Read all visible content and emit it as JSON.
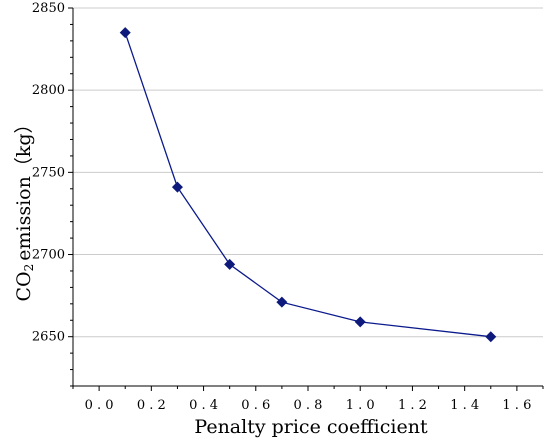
{
  "chart_data": {
    "type": "line",
    "title": "",
    "xlabel": "Penalty price coefficient",
    "ylabel": "emission（kg）",
    "ylabel_prefix": "CO",
    "ylabel_subscript": "2",
    "x": [
      0.1,
      0.3,
      0.5,
      0.7,
      1.0,
      1.5
    ],
    "series": [
      {
        "values": [
          2835,
          2741,
          2694,
          2671,
          2659,
          2650
        ]
      }
    ],
    "xlim": [
      -0.1,
      1.7
    ],
    "ylim": [
      2620,
      2850
    ],
    "xticks": [
      "0.0",
      "0.2",
      "0.4",
      "0.6",
      "0.8",
      "1.0",
      "1.2",
      "1.4",
      "1.6"
    ],
    "yticks": [
      "2650",
      "2700",
      "2750",
      "2800",
      "2850"
    ],
    "grid": "horizontal",
    "legend": "none",
    "marker": "diamond",
    "colors": {
      "series": "#0b1a8c",
      "marker": "#0d1a7c",
      "grid": "#cccccc",
      "axis": "#000000"
    }
  }
}
